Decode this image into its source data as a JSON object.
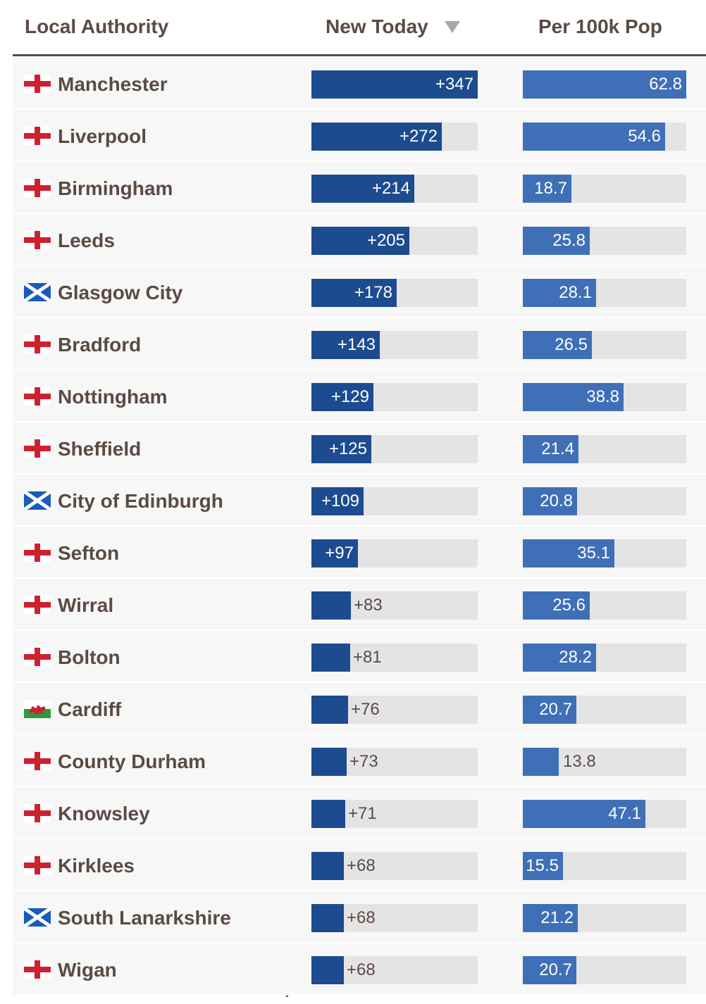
{
  "header": {
    "name_label": "Local Authority",
    "new_label": "New Today",
    "per_label": "Per 100k Pop",
    "sort_icon": "sort-descending-icon"
  },
  "colors": {
    "new_bar": "#1d4b8f",
    "per_bar": "#3f6fb6",
    "track": "#e4e4e4",
    "text": "#5b4a44"
  },
  "scale": {
    "new_max": 347,
    "per_max": 62.8
  },
  "rows": [
    {
      "name": "Manchester",
      "flag": "england",
      "new": 347,
      "new_label": "+347",
      "per": 62.8,
      "per_label": "62.8"
    },
    {
      "name": "Liverpool",
      "flag": "england",
      "new": 272,
      "new_label": "+272",
      "per": 54.6,
      "per_label": "54.6"
    },
    {
      "name": "Birmingham",
      "flag": "england",
      "new": 214,
      "new_label": "+214",
      "per": 18.7,
      "per_label": "18.7"
    },
    {
      "name": "Leeds",
      "flag": "england",
      "new": 205,
      "new_label": "+205",
      "per": 25.8,
      "per_label": "25.8"
    },
    {
      "name": "Glasgow City",
      "flag": "scotland",
      "new": 178,
      "new_label": "+178",
      "per": 28.1,
      "per_label": "28.1"
    },
    {
      "name": "Bradford",
      "flag": "england",
      "new": 143,
      "new_label": "+143",
      "per": 26.5,
      "per_label": "26.5"
    },
    {
      "name": "Nottingham",
      "flag": "england",
      "new": 129,
      "new_label": "+129",
      "per": 38.8,
      "per_label": "38.8"
    },
    {
      "name": "Sheffield",
      "flag": "england",
      "new": 125,
      "new_label": "+125",
      "per": 21.4,
      "per_label": "21.4"
    },
    {
      "name": "City of Edinburgh",
      "flag": "scotland",
      "new": 109,
      "new_label": "+109",
      "per": 20.8,
      "per_label": "20.8"
    },
    {
      "name": "Sefton",
      "flag": "england",
      "new": 97,
      "new_label": "+97",
      "per": 35.1,
      "per_label": "35.1"
    },
    {
      "name": "Wirral",
      "flag": "england",
      "new": 83,
      "new_label": "+83",
      "per": 25.6,
      "per_label": "25.6"
    },
    {
      "name": "Bolton",
      "flag": "england",
      "new": 81,
      "new_label": "+81",
      "per": 28.2,
      "per_label": "28.2"
    },
    {
      "name": "Cardiff",
      "flag": "wales",
      "new": 76,
      "new_label": "+76",
      "per": 20.7,
      "per_label": "20.7"
    },
    {
      "name": "County Durham",
      "flag": "england",
      "new": 73,
      "new_label": "+73",
      "per": 13.8,
      "per_label": "13.8"
    },
    {
      "name": "Knowsley",
      "flag": "england",
      "new": 71,
      "new_label": "+71",
      "per": 47.1,
      "per_label": "47.1"
    },
    {
      "name": "Kirklees",
      "flag": "england",
      "new": 68,
      "new_label": "+68",
      "per": 15.5,
      "per_label": "15.5"
    },
    {
      "name": "South Lanarkshire",
      "flag": "scotland",
      "new": 68,
      "new_label": "+68",
      "per": 21.2,
      "per_label": "21.2"
    },
    {
      "name": "Wigan",
      "flag": "england",
      "new": 68,
      "new_label": "+68",
      "per": 20.7,
      "per_label": "20.7"
    }
  ]
}
